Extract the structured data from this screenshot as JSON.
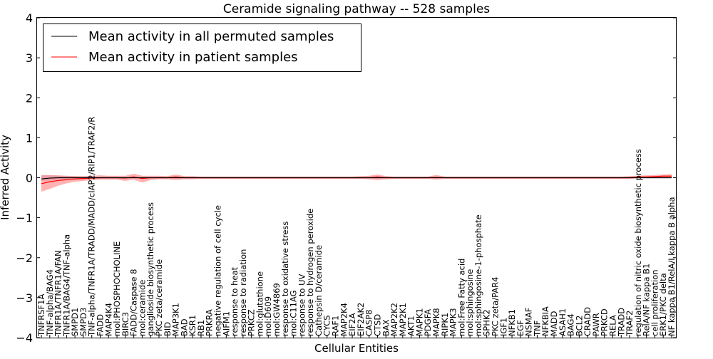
{
  "chart_data": {
    "type": "line",
    "title": "Ceramide signaling pathway -- 528 samples",
    "xlabel": "Cellular Entities",
    "ylabel": "Inferred Activity",
    "ylim": [
      -4,
      4
    ],
    "yticks": [
      -4,
      -3,
      -2,
      -1,
      0,
      1,
      2,
      3,
      4
    ],
    "ytick_labels": [
      "−4",
      "−3",
      "−2",
      "−1",
      "0",
      "1",
      "2",
      "3",
      "4"
    ],
    "grid": false,
    "legend_position": "upper-left",
    "categories": [
      "TNFRSF1A",
      "TNF-alpha/BAG4",
      "TNFR1A/TNFR1A/FAN",
      "TNFR1A/BAG4/TNF-alpha",
      "SMPD1",
      "SMPD3",
      "TNF-alpha/TNFR1A/TRADD/MADD/cIAP2/RIP1/TRAF2/R",
      "FADD",
      "MAP4K4",
      "mol:PHOSPHOCHOLINE",
      "BIRC3",
      "FADD/Caspase 8",
      "mol:ceramide",
      "ganglioside biosynthetic process",
      "PKC zeta/ceramide",
      "BID",
      "MAP3K1",
      "BAD",
      "KSR1",
      "RB1",
      "PRKRA",
      "negative regulation of cell cycle",
      "AIFM1",
      "response to heat",
      "response to radiation",
      "PRKCZ",
      "mol:glutathione",
      "mol:D609",
      "mol:GW4869",
      "response to oxidative stress",
      "mol:C11AG",
      "response to UV",
      "response to hydrogen peroxide",
      "Cathepsin D/ceramide",
      "CYCS",
      "RAF1",
      "MAP2K4",
      "EIF2A",
      "EIF2AK2",
      "CASP8",
      "CTSD",
      "BAX",
      "MAP2K2",
      "MAP2K1",
      "AKT1",
      "MAPK1",
      "PDGFA",
      "MAPK8",
      "RIPK1",
      "MAPK3",
      "mol:Free Fatty acid",
      "mol:sphingosine",
      "mol:sphingosine-1-phosphate",
      "SPHK2",
      "PKC zeta/PAR4",
      "IGF1",
      "NFKB1",
      "EGF",
      "NSMAF",
      "TNF",
      "NFKBIA",
      "MADD",
      "ASAH1",
      "BAG4",
      "BCL2",
      "CRADD",
      "PAWR",
      "PRKCD",
      "RELA",
      "TRADD",
      "TRAF2",
      "regulation of nitric oxide biosynthetic process",
      "RelA/NF kappa B1",
      "cell proliferation",
      "ERK1/PKC delta",
      "NF kappa B1/RelA/I kappa B alpha"
    ],
    "series": [
      {
        "name": "Mean activity in all permuted samples",
        "color": "#000000",
        "values": [
          -0.03,
          -0.01,
          0.0,
          0.0,
          0.0,
          0.0,
          0.0,
          0.0,
          0.0,
          0.0,
          0.0,
          0.0,
          0.0,
          0.0,
          0.0,
          0.0,
          0.0,
          0.0,
          0.0,
          0.0,
          0.0,
          0.0,
          0.0,
          0.0,
          0.0,
          0.0,
          0.0,
          0.0,
          0.0,
          0.0,
          0.0,
          0.0,
          0.0,
          0.0,
          0.0,
          0.0,
          0.0,
          0.0,
          0.0,
          0.0,
          0.0,
          0.0,
          0.0,
          0.0,
          0.0,
          0.0,
          0.0,
          0.0,
          0.0,
          0.0,
          0.0,
          0.0,
          0.0,
          0.0,
          0.0,
          0.0,
          0.0,
          0.0,
          0.0,
          0.0,
          0.0,
          0.0,
          0.0,
          0.0,
          0.0,
          0.0,
          0.0,
          0.0,
          0.0,
          0.0,
          0.0,
          0.0,
          0.0,
          0.0,
          0.0,
          0.0
        ],
        "band_low": [
          -0.08,
          -0.07,
          -0.06,
          -0.05,
          -0.04,
          -0.04,
          -0.03,
          -0.03,
          -0.03,
          -0.03,
          -0.02,
          -0.02,
          -0.02,
          -0.02,
          -0.02,
          -0.02,
          -0.02,
          -0.02,
          -0.02,
          -0.02,
          -0.02,
          -0.02,
          -0.02,
          -0.02,
          -0.02,
          -0.02,
          -0.02,
          -0.02,
          -0.02,
          -0.02,
          -0.02,
          -0.02,
          -0.02,
          -0.02,
          -0.02,
          -0.02,
          -0.02,
          -0.02,
          -0.02,
          -0.02,
          -0.02,
          -0.02,
          -0.02,
          -0.02,
          -0.02,
          -0.02,
          -0.02,
          -0.02,
          -0.02,
          -0.02,
          -0.02,
          -0.02,
          -0.02,
          -0.02,
          -0.02,
          -0.02,
          -0.02,
          -0.02,
          -0.02,
          -0.02,
          -0.02,
          -0.02,
          -0.02,
          -0.02,
          -0.02,
          -0.02,
          -0.02,
          -0.02,
          -0.02,
          -0.02,
          -0.02,
          -0.02,
          -0.02,
          -0.02,
          -0.02,
          -0.02
        ],
        "band_high": [
          0.06,
          0.06,
          0.05,
          0.04,
          0.04,
          0.03,
          0.03,
          0.03,
          0.03,
          0.03,
          0.02,
          0.02,
          0.02,
          0.02,
          0.02,
          0.02,
          0.02,
          0.02,
          0.02,
          0.02,
          0.02,
          0.02,
          0.02,
          0.02,
          0.02,
          0.02,
          0.02,
          0.02,
          0.02,
          0.02,
          0.02,
          0.02,
          0.02,
          0.02,
          0.02,
          0.02,
          0.02,
          0.02,
          0.02,
          0.02,
          0.02,
          0.02,
          0.02,
          0.02,
          0.02,
          0.02,
          0.02,
          0.02,
          0.02,
          0.02,
          0.02,
          0.02,
          0.02,
          0.02,
          0.02,
          0.02,
          0.02,
          0.02,
          0.02,
          0.02,
          0.02,
          0.02,
          0.02,
          0.02,
          0.02,
          0.02,
          0.02,
          0.02,
          0.02,
          0.02,
          0.02,
          0.02,
          0.02,
          0.02,
          0.02,
          0.02
        ]
      },
      {
        "name": "Mean activity in patient samples",
        "color": "#ff0000",
        "values": [
          -0.15,
          -0.1,
          -0.07,
          -0.05,
          -0.03,
          -0.02,
          -0.01,
          0.0,
          0.0,
          0.0,
          -0.01,
          0.02,
          -0.02,
          0.0,
          0.0,
          0.0,
          0.02,
          0.0,
          0.0,
          0.0,
          0.0,
          0.0,
          0.0,
          0.0,
          0.0,
          0.0,
          0.0,
          0.0,
          0.0,
          0.0,
          0.0,
          0.0,
          0.0,
          0.0,
          0.0,
          0.0,
          0.0,
          0.0,
          0.0,
          0.0,
          0.02,
          0.0,
          0.0,
          0.0,
          0.0,
          0.0,
          0.0,
          0.01,
          0.0,
          0.0,
          0.0,
          0.0,
          0.0,
          0.0,
          0.0,
          0.0,
          0.0,
          0.0,
          0.0,
          0.0,
          0.0,
          0.0,
          0.0,
          0.0,
          0.0,
          0.0,
          0.0,
          0.0,
          0.0,
          0.0,
          0.0,
          0.02,
          0.02,
          0.03,
          0.04,
          0.04
        ],
        "band_low": [
          -0.35,
          -0.28,
          -0.2,
          -0.14,
          -0.1,
          -0.08,
          -0.06,
          -0.05,
          -0.05,
          -0.05,
          -0.08,
          -0.05,
          -0.12,
          -0.06,
          -0.04,
          -0.04,
          -0.06,
          -0.04,
          -0.04,
          -0.03,
          -0.03,
          -0.03,
          -0.03,
          -0.03,
          -0.03,
          -0.03,
          -0.03,
          -0.03,
          -0.03,
          -0.03,
          -0.03,
          -0.03,
          -0.03,
          -0.03,
          -0.03,
          -0.03,
          -0.03,
          -0.03,
          -0.03,
          -0.04,
          -0.06,
          -0.04,
          -0.03,
          -0.03,
          -0.03,
          -0.03,
          -0.03,
          -0.05,
          -0.03,
          -0.03,
          -0.03,
          -0.03,
          -0.03,
          -0.03,
          -0.03,
          -0.03,
          -0.03,
          -0.03,
          -0.03,
          -0.03,
          -0.03,
          -0.03,
          -0.03,
          -0.03,
          -0.03,
          -0.03,
          -0.03,
          -0.03,
          -0.03,
          -0.03,
          -0.03,
          -0.01,
          -0.01,
          -0.01,
          -0.01,
          -0.01
        ],
        "band_high": [
          0.06,
          0.07,
          0.06,
          0.05,
          0.04,
          0.04,
          0.05,
          0.06,
          0.05,
          0.05,
          0.05,
          0.1,
          0.05,
          0.05,
          0.05,
          0.04,
          0.08,
          0.04,
          0.04,
          0.03,
          0.03,
          0.03,
          0.03,
          0.03,
          0.03,
          0.03,
          0.03,
          0.03,
          0.03,
          0.03,
          0.03,
          0.03,
          0.03,
          0.03,
          0.03,
          0.03,
          0.03,
          0.03,
          0.04,
          0.05,
          0.08,
          0.04,
          0.03,
          0.03,
          0.03,
          0.03,
          0.03,
          0.07,
          0.03,
          0.03,
          0.03,
          0.03,
          0.03,
          0.03,
          0.03,
          0.03,
          0.03,
          0.03,
          0.03,
          0.03,
          0.03,
          0.03,
          0.03,
          0.03,
          0.03,
          0.03,
          0.03,
          0.03,
          0.03,
          0.03,
          0.04,
          0.05,
          0.06,
          0.07,
          0.08,
          0.09
        ]
      }
    ]
  }
}
